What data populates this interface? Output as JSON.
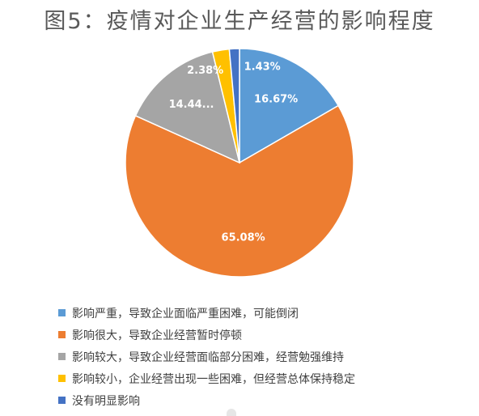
{
  "chart_data": {
    "type": "pie",
    "title": "图5：疫情对企业生产经营的影响程度",
    "legend_position": "bottom",
    "slices": [
      {
        "name": "影响严重，导致企业面临严重困难，可能倒闭",
        "value": 16.67,
        "label": "16.67%",
        "color": "#5b9bd5"
      },
      {
        "name": "影响很大，导致企业经营暂时停顿",
        "value": 65.08,
        "label": "65.08%",
        "color": "#ed7d31"
      },
      {
        "name": "影响较大，导致企业经营面临部分困难，经营勉强维持",
        "value": 14.44,
        "label": "14.44...",
        "color": "#a5a5a5"
      },
      {
        "name": "影响较小，企业经营出现一些困难，但经营总体保持稳定",
        "value": 2.38,
        "label": "2.38%",
        "color": "#ffc000"
      },
      {
        "name": "没有明显影响",
        "value": 1.43,
        "label": "1.43%",
        "color": "#4472c4"
      }
    ]
  }
}
